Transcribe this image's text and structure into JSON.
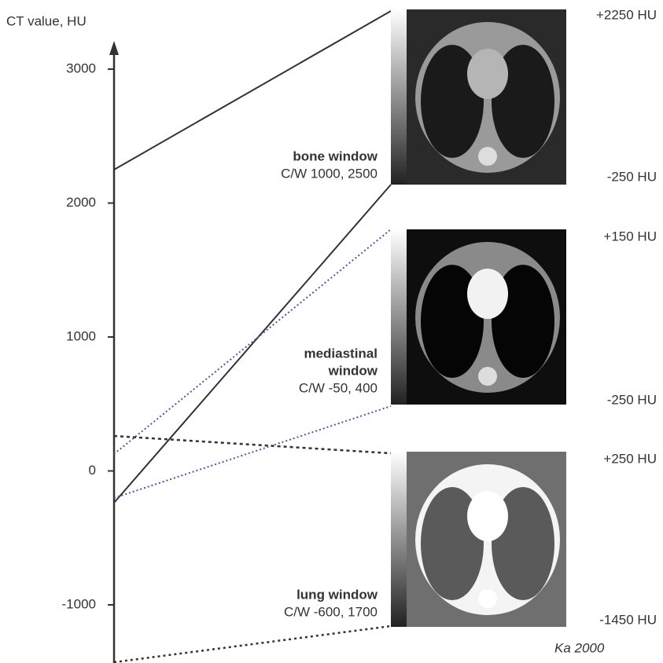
{
  "axis": {
    "title": "CT value, HU",
    "ticks": [
      "3000",
      "2000",
      "1000",
      "0",
      "-1000"
    ]
  },
  "windows": [
    {
      "name_lines": [
        "bone window"
      ],
      "cw": "C/W 1000, 2500",
      "top_label": "+2250 HU",
      "bottom_label": "-250 HU"
    },
    {
      "name_lines": [
        "mediastinal",
        "window"
      ],
      "cw": "C/W -50, 400",
      "top_label": "+150 HU",
      "bottom_label": "-250 HU"
    },
    {
      "name_lines": [
        "lung window"
      ],
      "cw": "C/W -600, 1700",
      "top_label": "+250 HU",
      "bottom_label": "-1450 HU"
    }
  ],
  "signature": "Ka 2000"
}
